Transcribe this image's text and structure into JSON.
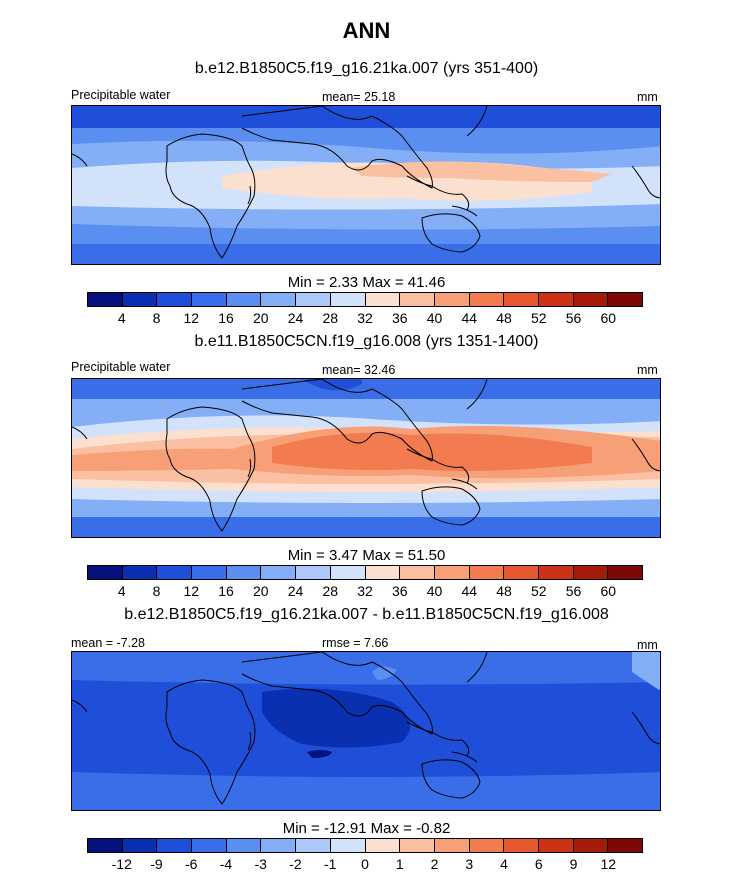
{
  "main_title": "ANN",
  "panels": [
    {
      "title": "b.e12.B1850C5.f19_g16.21ka.007 (yrs 351-400)",
      "left_label": "Precipitable water",
      "center_label": "mean=  25.18",
      "unit": "mm",
      "minmax": "Min =   2.33 Max =  41.46",
      "colorbar_ticks": [
        "4",
        "8",
        "12",
        "16",
        "20",
        "24",
        "28",
        "32",
        "36",
        "40",
        "44",
        "48",
        "52",
        "56",
        "60"
      ]
    },
    {
      "title": "b.e11.B1850C5CN.f19_g16.008 (yrs 1351-1400)",
      "left_label": "Precipitable water",
      "center_label": "mean=  32.46",
      "unit": "mm",
      "minmax": "Min =   3.47 Max =  51.50",
      "colorbar_ticks": [
        "4",
        "8",
        "12",
        "16",
        "20",
        "24",
        "28",
        "32",
        "36",
        "40",
        "44",
        "48",
        "52",
        "56",
        "60"
      ]
    },
    {
      "title": "b.e12.B1850C5.f19_g16.21ka.007 - b.e11.B1850C5CN.f19_g16.008",
      "left_label": "mean =  -7.28",
      "center_label": "rmse =   7.66",
      "unit": "mm",
      "minmax": "Min = -12.91 Max =  -0.82",
      "colorbar_ticks": [
        "-12",
        "-9",
        "-6",
        "-4",
        "-3",
        "-2",
        "-1",
        "0",
        "1",
        "2",
        "3",
        "4",
        "6",
        "9",
        "12"
      ]
    }
  ],
  "colors": {
    "scale": [
      "#05117d",
      "#0a2fb0",
      "#1f4fd8",
      "#3a6ee8",
      "#5a8ef0",
      "#84aef5",
      "#acc8f8",
      "#d2e2fb",
      "#fbe0d0",
      "#fbc0a2",
      "#f7a078",
      "#f27c50",
      "#e6582f",
      "#cc3316",
      "#a51c0a",
      "#7d0806"
    ]
  }
}
